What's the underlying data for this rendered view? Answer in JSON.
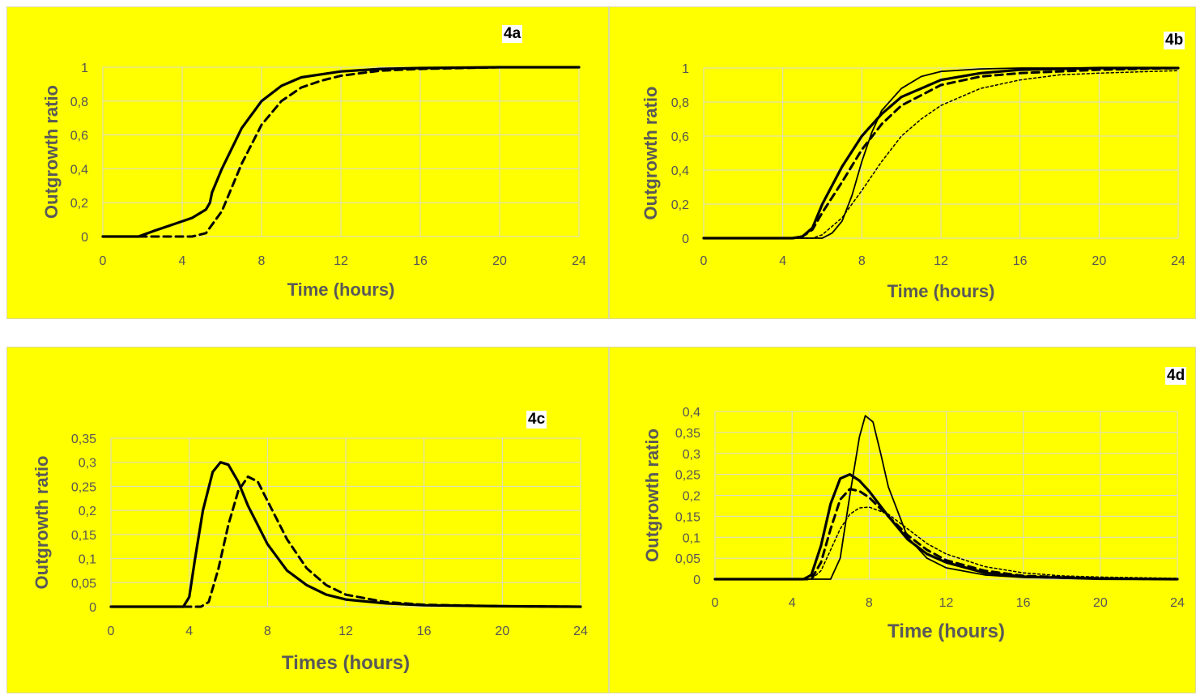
{
  "figure": {
    "background": "#ffff00",
    "grid_color": "#d9d9d9",
    "line_color": "#000000"
  },
  "chart_data": [
    {
      "id": "4a",
      "panel_label": "4a",
      "type": "line",
      "xlabel": "Time (hours)",
      "ylabel": "Outgrowth ratio",
      "xlim": [
        0,
        24
      ],
      "ylim": [
        0,
        1
      ],
      "xticks": [
        0,
        4,
        8,
        12,
        16,
        20,
        24
      ],
      "xtick_labels": [
        "0",
        "4",
        "8",
        "12",
        "16",
        "20",
        "24"
      ],
      "yticks": [
        0,
        0.2,
        0.4,
        0.6,
        0.8,
        1
      ],
      "ytick_labels": [
        "0",
        "0,2",
        "0,4",
        "0,6",
        "0,8",
        "1"
      ],
      "grid": true,
      "series": [
        {
          "style": "solid-thick",
          "x": [
            0,
            1.8,
            2.5,
            3.5,
            4.5,
            5.2,
            5.4,
            5.5,
            6,
            7,
            8,
            9,
            10,
            12,
            14,
            16,
            20,
            24
          ],
          "y": [
            0,
            0,
            0.03,
            0.07,
            0.11,
            0.16,
            0.2,
            0.26,
            0.4,
            0.64,
            0.8,
            0.89,
            0.94,
            0.975,
            0.99,
            0.995,
            1,
            1
          ]
        },
        {
          "style": "dashed-thick",
          "x": [
            0,
            2.5,
            4.5,
            5.2,
            6,
            7,
            8,
            9,
            10,
            11,
            12,
            14,
            16,
            20,
            24
          ],
          "y": [
            0,
            0,
            0,
            0.02,
            0.15,
            0.43,
            0.66,
            0.8,
            0.88,
            0.92,
            0.95,
            0.98,
            0.99,
            1,
            1
          ]
        }
      ]
    },
    {
      "id": "4b",
      "panel_label": "4b",
      "type": "line",
      "xlabel": "Time (hours)",
      "ylabel": "Outgrowth ratio",
      "xlim": [
        0,
        24
      ],
      "ylim": [
        0,
        1
      ],
      "xticks": [
        0,
        4,
        8,
        12,
        16,
        20,
        24
      ],
      "xtick_labels": [
        "0",
        "4",
        "8",
        "12",
        "16",
        "20",
        "24"
      ],
      "yticks": [
        0,
        0.2,
        0.4,
        0.6,
        0.8,
        1
      ],
      "ytick_labels": [
        "0",
        "0,2",
        "0,4",
        "0,6",
        "0,8",
        "1"
      ],
      "grid": true,
      "series": [
        {
          "style": "solid-thick",
          "x": [
            0,
            4.5,
            5,
            5.5,
            6,
            7,
            8,
            9,
            10,
            12,
            14,
            16,
            20,
            24
          ],
          "y": [
            0,
            0,
            0.01,
            0.06,
            0.2,
            0.42,
            0.6,
            0.73,
            0.83,
            0.93,
            0.97,
            0.99,
            1,
            1
          ]
        },
        {
          "style": "dashed-thick",
          "x": [
            0,
            4.5,
            5,
            5.5,
            6,
            7,
            8,
            9,
            10,
            12,
            14,
            16,
            20,
            24
          ],
          "y": [
            0,
            0,
            0.01,
            0.05,
            0.15,
            0.33,
            0.52,
            0.67,
            0.78,
            0.9,
            0.95,
            0.97,
            0.99,
            1
          ]
        },
        {
          "style": "solid-thin",
          "x": [
            0,
            6,
            6.5,
            7,
            7.5,
            8,
            8.5,
            9,
            10,
            11,
            12,
            14,
            16,
            24
          ],
          "y": [
            0,
            0,
            0.03,
            0.1,
            0.25,
            0.45,
            0.62,
            0.75,
            0.88,
            0.95,
            0.98,
            0.995,
            1,
            1
          ]
        },
        {
          "style": "dotted-thin",
          "x": [
            0,
            5.5,
            6,
            7,
            8,
            9,
            10,
            11,
            12,
            14,
            16,
            18,
            20,
            24
          ],
          "y": [
            0,
            0,
            0.02,
            0.12,
            0.28,
            0.45,
            0.6,
            0.7,
            0.78,
            0.88,
            0.93,
            0.96,
            0.97,
            0.985
          ]
        }
      ]
    },
    {
      "id": "4c",
      "panel_label": "4c",
      "type": "line",
      "xlabel": "Times (hours)",
      "ylabel": "Outgrowth ratio",
      "xlim": [
        0,
        24
      ],
      "ylim": [
        0,
        0.35
      ],
      "xticks": [
        0,
        4,
        8,
        12,
        16,
        20,
        24
      ],
      "xtick_labels": [
        "0",
        "4",
        "8",
        "12",
        "16",
        "20",
        "24"
      ],
      "yticks": [
        0,
        0.05,
        0.1,
        0.15,
        0.2,
        0.25,
        0.3,
        0.35
      ],
      "ytick_labels": [
        "0",
        "0,05",
        "0,1",
        "0,15",
        "0,2",
        "0,25",
        "0,3",
        "0,35"
      ],
      "grid": true,
      "series": [
        {
          "style": "solid-thick",
          "x": [
            0,
            3.7,
            4,
            4.3,
            4.7,
            5.2,
            5.6,
            6,
            6.5,
            7,
            8,
            9,
            10,
            11,
            12,
            14,
            16,
            20,
            24
          ],
          "y": [
            0,
            0,
            0.02,
            0.1,
            0.2,
            0.28,
            0.3,
            0.295,
            0.26,
            0.21,
            0.13,
            0.075,
            0.045,
            0.025,
            0.015,
            0.007,
            0.003,
            0.001,
            0
          ]
        },
        {
          "style": "dashed-thick",
          "x": [
            0,
            4.6,
            5,
            5.5,
            6,
            6.5,
            7,
            7.5,
            8,
            9,
            10,
            11,
            12,
            14,
            16,
            20,
            24
          ],
          "y": [
            0,
            0,
            0.01,
            0.08,
            0.17,
            0.24,
            0.27,
            0.26,
            0.22,
            0.14,
            0.08,
            0.045,
            0.025,
            0.01,
            0.004,
            0.001,
            0
          ]
        }
      ]
    },
    {
      "id": "4d",
      "panel_label": "4d",
      "type": "line",
      "xlabel": "Time (hours)",
      "ylabel": "Outgrowth ratio",
      "xlim": [
        0,
        24
      ],
      "ylim": [
        0,
        0.4
      ],
      "xticks": [
        0,
        4,
        8,
        12,
        16,
        20,
        24
      ],
      "xtick_labels": [
        "0",
        "4",
        "8",
        "12",
        "16",
        "20",
        "24"
      ],
      "yticks": [
        0,
        0.05,
        0.1,
        0.15,
        0.2,
        0.25,
        0.3,
        0.35,
        0.4
      ],
      "ytick_labels": [
        "0",
        "0,05",
        "0,1",
        "0,15",
        "0,2",
        "0,25",
        "0,3",
        "0,35",
        "0,4"
      ],
      "grid": true,
      "series": [
        {
          "style": "solid-thick",
          "x": [
            0,
            4.6,
            5,
            5.5,
            6,
            6.5,
            7,
            7.5,
            8,
            9,
            10,
            11,
            12,
            14,
            16,
            20,
            24
          ],
          "y": [
            0,
            0,
            0.01,
            0.08,
            0.18,
            0.24,
            0.25,
            0.235,
            0.21,
            0.15,
            0.095,
            0.06,
            0.04,
            0.015,
            0.006,
            0.001,
            0
          ]
        },
        {
          "style": "dashed-thick",
          "x": [
            0,
            5,
            5.5,
            6,
            6.5,
            7,
            7.5,
            8,
            9,
            10,
            11,
            12,
            14,
            16,
            20,
            24
          ],
          "y": [
            0,
            0,
            0.04,
            0.12,
            0.19,
            0.215,
            0.21,
            0.195,
            0.15,
            0.105,
            0.07,
            0.045,
            0.02,
            0.008,
            0.002,
            0
          ]
        },
        {
          "style": "solid-thin",
          "x": [
            0,
            6,
            6.5,
            7,
            7.5,
            7.8,
            8.2,
            8.6,
            9,
            10,
            11,
            12,
            14,
            16,
            20,
            24
          ],
          "y": [
            0,
            0,
            0.05,
            0.2,
            0.34,
            0.39,
            0.375,
            0.3,
            0.22,
            0.1,
            0.05,
            0.027,
            0.01,
            0.004,
            0.001,
            0
          ]
        },
        {
          "style": "dotted-thin",
          "x": [
            0,
            5,
            5.5,
            6,
            6.5,
            7,
            7.5,
            8,
            9,
            10,
            11,
            12,
            14,
            16,
            18,
            20,
            24
          ],
          "y": [
            0,
            0,
            0.02,
            0.07,
            0.12,
            0.155,
            0.17,
            0.172,
            0.155,
            0.12,
            0.085,
            0.06,
            0.03,
            0.015,
            0.008,
            0.005,
            0.002
          ]
        }
      ]
    }
  ]
}
